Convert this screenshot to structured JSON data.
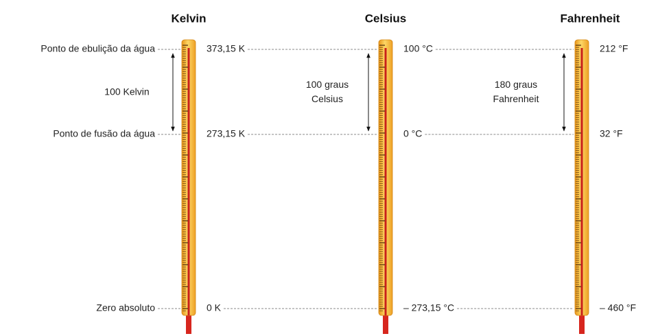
{
  "references": [
    "Ponto de ebulição da água",
    "Ponto de fusão da água",
    "Zero absoluto"
  ],
  "scales": [
    {
      "name": "Kelvin",
      "values": [
        "373,15 K",
        "273,15 K",
        "0 K"
      ],
      "interval": [
        "100 Kelvin"
      ]
    },
    {
      "name": "Celsius",
      "values": [
        "100 °C",
        "0 °C",
        "– 273,15 °C"
      ],
      "interval": [
        "100 graus",
        "Celsius"
      ]
    },
    {
      "name": "Fahrenheit",
      "values": [
        "212 °F",
        "32 °F",
        "– 460 °F"
      ],
      "interval": [
        "180 graus",
        "Fahrenheit"
      ]
    }
  ]
}
